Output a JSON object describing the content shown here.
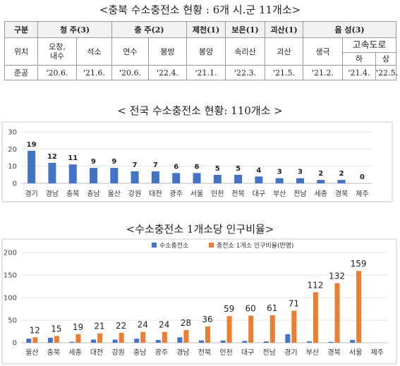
{
  "header": {
    "title": "<충북 수소충전소 현황 : 6개 시.군 11개소>"
  },
  "table": {
    "header": [
      "구분",
      "청 주(3)",
      "충 주(2)",
      "제천(1)",
      "보은(1)",
      "괴산(1)",
      "음 성(3)"
    ],
    "location_label": "위치",
    "locations": [
      "오창,\n내수",
      "석소",
      "연수",
      "봉방",
      "봉양",
      "속리산",
      "괴산",
      "생극"
    ],
    "highway_label": "고속도로",
    "highway_sub": [
      "하",
      "상"
    ],
    "completion_label": "준공",
    "completion": [
      "'20.6.",
      "'21.6.",
      "'20.6.",
      "'22.4.",
      "'21.1.",
      "'22.3.",
      "'21.5.",
      "'21.2.",
      "'21.4.",
      "'22.5."
    ]
  },
  "chart_data": [
    {
      "type": "bar",
      "title": "< 전국 수소충전소 현황: 110개소 >",
      "categories": [
        "경기",
        "경남",
        "충북",
        "충남",
        "울산",
        "강원",
        "대전",
        "광주",
        "서울",
        "인천",
        "전북",
        "대구",
        "부산",
        "전남",
        "세종",
        "경북",
        "제주"
      ],
      "values": [
        19,
        12,
        11,
        9,
        9,
        7,
        7,
        6,
        6,
        5,
        5,
        4,
        3,
        3,
        2,
        2,
        0
      ],
      "ylim": [
        0,
        30
      ],
      "yticks": [
        0,
        10,
        20,
        30
      ],
      "grid": true,
      "color": "#4472c4"
    },
    {
      "type": "bar",
      "title": "<수소충전소 1개소당 인구비율>",
      "categories": [
        "울산",
        "충북",
        "세종",
        "대전",
        "강원",
        "충남",
        "광주",
        "경남",
        "전북",
        "인천",
        "대구",
        "전남",
        "경기",
        "부산",
        "경북",
        "서울",
        "제주"
      ],
      "series": [
        {
          "name": "수소충전소",
          "values": [
            9,
            11,
            2,
            7,
            7,
            9,
            6,
            12,
            5,
            5,
            4,
            3,
            19,
            3,
            2,
            6,
            0
          ],
          "color": "#4472c4"
        },
        {
          "name": "충전소 1개소 인구비율(만명)",
          "values": [
            12,
            15,
            19,
            21,
            22,
            24,
            24,
            28,
            36,
            59,
            60,
            61,
            71,
            112,
            132,
            159,
            null
          ],
          "color": "#ed7d31"
        }
      ],
      "ylim": [
        0,
        200
      ],
      "yticks": [
        0,
        50,
        100,
        150,
        200
      ],
      "legend": "top-center",
      "grid": true
    }
  ]
}
